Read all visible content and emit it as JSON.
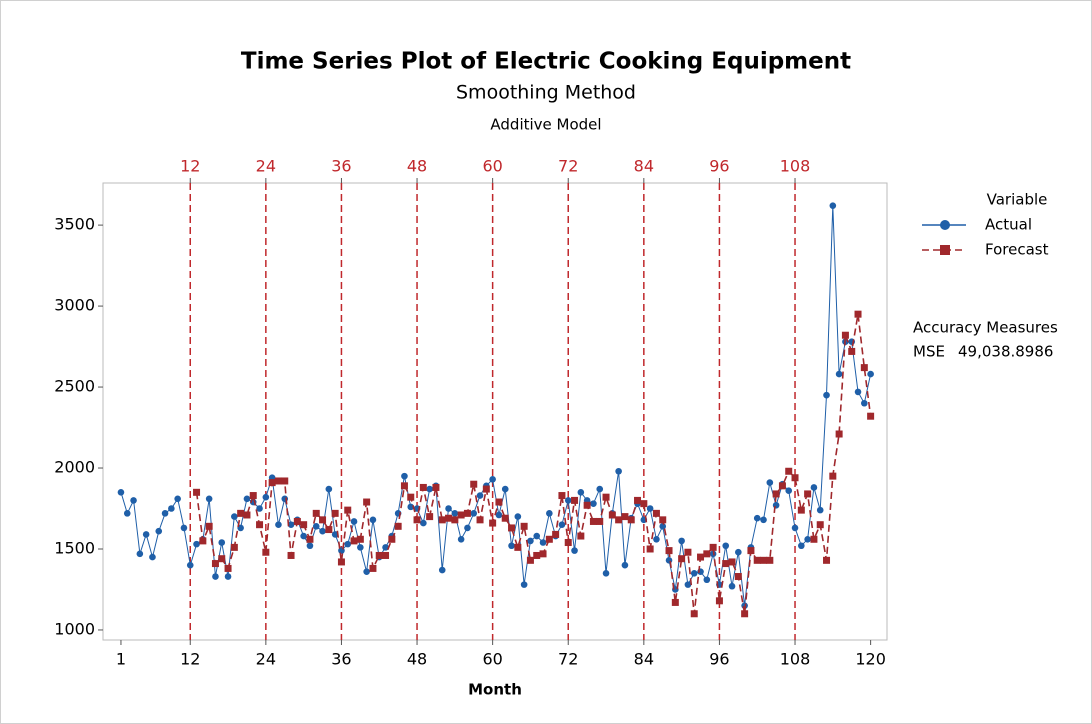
{
  "chart_data": {
    "type": "line",
    "title": "Time Series Plot of Electric Cooking Equipment",
    "subtitle": "Smoothing Method",
    "subtitle2": "Additive Model",
    "x_label": "Month",
    "x": [
      1,
      2,
      3,
      4,
      5,
      6,
      7,
      8,
      9,
      10,
      11,
      12,
      13,
      14,
      15,
      16,
      17,
      18,
      19,
      20,
      21,
      22,
      23,
      24,
      25,
      26,
      27,
      28,
      29,
      30,
      31,
      32,
      33,
      34,
      35,
      36,
      37,
      38,
      39,
      40,
      41,
      42,
      43,
      44,
      45,
      46,
      47,
      48,
      49,
      50,
      51,
      52,
      53,
      54,
      55,
      56,
      57,
      58,
      59,
      60,
      61,
      62,
      63,
      64,
      65,
      66,
      67,
      68,
      69,
      70,
      71,
      72,
      73,
      74,
      75,
      76,
      77,
      78,
      79,
      80,
      81,
      82,
      83,
      84,
      85,
      86,
      87,
      88,
      89,
      90,
      91,
      92,
      93,
      94,
      95,
      96,
      97,
      98,
      99,
      100,
      101,
      102,
      103,
      104,
      105,
      106,
      107,
      108,
      109,
      110,
      111,
      112,
      113,
      114,
      115,
      116,
      117,
      118,
      119,
      120
    ],
    "series": [
      {
        "name": "Actual",
        "color": "#1f5fa8",
        "marker": "circle",
        "dashed": false,
        "values": [
          1850,
          1720,
          1800,
          1470,
          1590,
          1450,
          1610,
          1720,
          1750,
          1810,
          1630,
          1400,
          1530,
          1560,
          1810,
          1330,
          1540,
          1330,
          1700,
          1630,
          1810,
          1790,
          1750,
          1820,
          1940,
          1650,
          1810,
          1650,
          1680,
          1580,
          1520,
          1640,
          1610,
          1870,
          1590,
          1490,
          1530,
          1670,
          1510,
          1360,
          1680,
          1450,
          1510,
          1580,
          1720,
          1950,
          1760,
          1750,
          1660,
          1870,
          1890,
          1370,
          1750,
          1720,
          1560,
          1630,
          1720,
          1830,
          1890,
          1930,
          1710,
          1870,
          1520,
          1700,
          1280,
          1550,
          1580,
          1540,
          1720,
          1580,
          1650,
          1800,
          1490,
          1850,
          1800,
          1780,
          1870,
          1350,
          1720,
          1980,
          1400,
          1690,
          1780,
          1680,
          1750,
          1560,
          1640,
          1430,
          1250,
          1550,
          1280,
          1350,
          1360,
          1310,
          1470,
          1280,
          1520,
          1270,
          1480,
          1150,
          1510,
          1690,
          1680,
          1910,
          1770,
          1900,
          1860,
          1630,
          1520,
          1560,
          1880,
          1740,
          2450,
          3620,
          2580,
          2780,
          2780,
          2470,
          2400,
          2580
        ]
      },
      {
        "name": "Forecast",
        "color": "#a0282c",
        "marker": "square",
        "dashed": true,
        "values": [
          null,
          null,
          null,
          null,
          null,
          null,
          null,
          null,
          null,
          null,
          null,
          null,
          1850,
          1550,
          1640,
          1410,
          1440,
          1380,
          1510,
          1720,
          1710,
          1830,
          1650,
          1480,
          1910,
          1920,
          1920,
          1460,
          1670,
          1650,
          1560,
          1720,
          1680,
          1620,
          1720,
          1420,
          1740,
          1550,
          1560,
          1790,
          1380,
          1460,
          1460,
          1560,
          1640,
          1890,
          1820,
          1680,
          1880,
          1700,
          1880,
          1680,
          1690,
          1680,
          1710,
          1720,
          1900,
          1680,
          1870,
          1660,
          1790,
          1690,
          1630,
          1510,
          1640,
          1430,
          1460,
          1470,
          1560,
          1590,
          1830,
          1540,
          1800,
          1580,
          1770,
          1670,
          1670,
          1820,
          1710,
          1680,
          1700,
          1680,
          1800,
          1780,
          1500,
          1720,
          1680,
          1490,
          1170,
          1440,
          1480,
          1100,
          1450,
          1470,
          1510,
          1180,
          1410,
          1420,
          1330,
          1100,
          1490,
          1430,
          1430,
          1430,
          1840,
          1890,
          1980,
          1940,
          1740,
          1840,
          1560,
          1650,
          1430,
          1950,
          2210,
          2820,
          2720,
          2950,
          2620,
          2320
        ]
      }
    ],
    "xlim": [
      -1.85,
      122.6
    ],
    "xticks": [
      1,
      12,
      24,
      36,
      48,
      60,
      72,
      84,
      96,
      108,
      120
    ],
    "ylim": [
      938,
      3760
    ],
    "yticks": [
      1000,
      1500,
      2000,
      2500,
      3000,
      3500
    ],
    "reference_lines": {
      "color": "#c0282c",
      "values": [
        12,
        24,
        36,
        48,
        60,
        72,
        84,
        96,
        108
      ]
    },
    "legend": {
      "title": "Variable",
      "position": "right"
    },
    "accuracy": {
      "title": "Accuracy Measures",
      "measures": [
        {
          "name": "MSE",
          "value": "49,038.8986"
        }
      ]
    }
  }
}
